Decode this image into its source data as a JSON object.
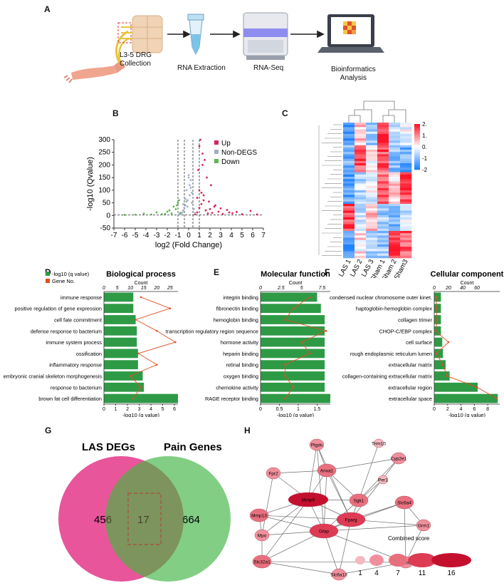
{
  "panel_labels": {
    "a": "A",
    "b": "B",
    "c": "C",
    "d": "D",
    "e": "E",
    "f": "F",
    "g": "G",
    "h": "H"
  },
  "workflow": {
    "step1": {
      "line1": "L3-5 DRG",
      "line2": "Collection"
    },
    "step2": "RNA Extraction",
    "step3": "RNA-Seq",
    "step4": {
      "line1": "Bioinformatics",
      "line2": "Analysis"
    }
  },
  "colors": {
    "up": "#d6245a",
    "nondeg": "#a3afc8",
    "down": "#5fb94a",
    "bar": "#2e9a46",
    "line": "#e0501f",
    "venn_left": "#e8559b",
    "venn_right": "#6cc56e"
  },
  "chart_data": [
    {
      "type": "scatter",
      "title": "Volcano plot",
      "xlabel": "log2 (Fold Change)",
      "ylabel": "-log10 (Qvalue)",
      "xticks": [
        "-7",
        "-6",
        "-5",
        "-4",
        "-3",
        "-2",
        "-1",
        "0",
        "1",
        "2",
        "3",
        "4",
        "5",
        "6",
        "7"
      ],
      "yticks": [
        "-50",
        "0",
        "50",
        "100",
        "150",
        "200",
        "250",
        "300"
      ],
      "xlim": [
        -7,
        7
      ],
      "ylim": [
        -50,
        300
      ],
      "legend": [
        "Up",
        "Non-DEGS",
        "Down"
      ],
      "series": [
        {
          "name": "Up",
          "x": [
            0.6,
            0.8,
            1.0,
            1.2,
            1.4,
            1.6,
            1.8,
            2.0,
            2.2,
            2.5,
            2.8,
            3.2,
            3.6,
            4.1,
            4.5,
            5.0,
            5.8,
            6.4,
            1.1,
            1.3,
            1.5,
            0.9,
            1.7,
            2.1,
            1.0,
            1.2,
            1.4,
            0.8,
            1.9,
            2.4,
            3.0,
            3.8,
            1.0,
            1.3
          ],
          "y": [
            5,
            12,
            30,
            45,
            60,
            20,
            8,
            25,
            10,
            40,
            15,
            6,
            22,
            9,
            14,
            5,
            18,
            4,
            300,
            245,
            220,
            180,
            150,
            120,
            100,
            90,
            80,
            70,
            55,
            35,
            28,
            12,
            275,
            200
          ]
        },
        {
          "name": "Non-DEGS",
          "x": [
            -0.9,
            -0.7,
            -0.5,
            -0.3,
            -0.1,
            0.1,
            0.3,
            0.5,
            -0.6,
            -0.2,
            0.2,
            0.4,
            -0.4,
            0.0,
            -0.8,
            0.6,
            -0.5,
            0.1,
            -0.3,
            0.3,
            0.0,
            -0.1,
            0.2,
            -0.2
          ],
          "y": [
            3,
            8,
            20,
            40,
            60,
            80,
            50,
            25,
            12,
            100,
            140,
            70,
            30,
            150,
            5,
            10,
            45,
            120,
            65,
            90,
            160,
            35,
            110,
            55
          ]
        },
        {
          "name": "Down",
          "x": [
            -0.8,
            -1.2,
            -1.6,
            -2.0,
            -2.5,
            -3.0,
            -3.5,
            -4.2,
            -5.0,
            -6.0,
            -1.0,
            -1.4,
            -1.8,
            -2.2,
            -1.1,
            -0.9
          ],
          "y": [
            10,
            25,
            8,
            15,
            5,
            12,
            4,
            7,
            3,
            2,
            50,
            35,
            20,
            6,
            40,
            60
          ]
        }
      ]
    },
    {
      "type": "heatmap",
      "title": "Clustered heatmap",
      "columns": [
        "LAS 1",
        "LAS 2",
        "LAS 3",
        "Sham 1",
        "Sham 2",
        "Sham3"
      ],
      "colorbar": [
        "2.00",
        "1.00",
        "0.00",
        "-1.00",
        "-2.00"
      ],
      "vmin": -2,
      "vmax": 2
    },
    {
      "type": "bar",
      "title": "Biological process",
      "legend": [
        "-log10 (q value)",
        "Gene No."
      ],
      "categories": [
        "immune response",
        "positive regulation of gene expression",
        "cell fate commitment",
        "defense response to bacterium",
        "immune system process",
        "ossification",
        "inflammatory response",
        "embryonic cranial skeleton morphogenesis",
        "response to bacterium",
        "brown fat cell differentiation"
      ],
      "values": [
        2.5,
        2.5,
        2.7,
        2.8,
        2.8,
        2.9,
        2.9,
        3.3,
        3.4,
        6.3
      ],
      "counts": [
        14,
        25,
        12,
        20,
        27,
        13,
        20,
        10,
        14,
        11
      ],
      "xlabel": "-log10 (q value)",
      "xticks": [
        "0",
        "1",
        "2",
        "3",
        "4",
        "5",
        "6"
      ],
      "xlim": [
        0,
        6.3
      ],
      "top_label": "Count",
      "top_ticks": [
        "0",
        "5",
        "10",
        "15",
        "20",
        "25"
      ],
      "top_lim": [
        0,
        28
      ]
    },
    {
      "type": "bar",
      "title": "Molecular function",
      "categories": [
        "integrin binding",
        "fibronectin binding",
        "hemoglobin binding",
        "transcription regulatory region sequence",
        "hormone activity",
        "heparin binding",
        "retinal binding",
        "oxygen binding",
        "chemokine activity",
        "RAGE receptor binding"
      ],
      "values": [
        1.5,
        1.6,
        1.7,
        1.7,
        1.7,
        1.7,
        1.7,
        1.7,
        1.7,
        1.85
      ],
      "counts": [
        6,
        4,
        3,
        8,
        5,
        6,
        3,
        3,
        4,
        3
      ],
      "xlabel": "-log10 (q value)",
      "xticks": [
        "0",
        "0.5",
        "1",
        "1.5"
      ],
      "xlim": [
        0,
        1.85
      ],
      "top_label": "Count",
      "top_ticks": [
        "0",
        "2.5",
        "5",
        "7.5"
      ],
      "top_lim": [
        0,
        8.5
      ]
    },
    {
      "type": "bar",
      "title": "Cellular component",
      "categories": [
        "condensed nuclear chromosome outer kinet.",
        "haptoglobin-hemoglobin complex",
        "collagen trimer",
        "CHOP-C/EBP complex",
        "cell surface",
        "rough endoplasmic reticulum lumen",
        "extracellular matrix",
        "collagen-containing extracellular matrix",
        "extracellular region",
        "extracellular space"
      ],
      "values": [
        1.0,
        1.0,
        1.0,
        1.0,
        1.2,
        1.3,
        1.7,
        2.3,
        6.5,
        9.5
      ],
      "counts": [
        3,
        3,
        4,
        2,
        20,
        3,
        12,
        18,
        60,
        88
      ],
      "xlabel": "-log10 (q value)",
      "xticks": [
        "0",
        "2",
        "4",
        "6",
        "8"
      ],
      "xlim": [
        0,
        9.8
      ],
      "top_label": "Count",
      "top_ticks": [
        "0",
        "20",
        "40",
        "60"
      ],
      "top_lim": [
        0,
        92
      ]
    }
  ],
  "venn": {
    "left_title": "LAS DEGs",
    "right_title": "Pain Genes",
    "left_only": "456",
    "overlap": "17",
    "right_only": "664"
  },
  "network": {
    "nodes": [
      {
        "label": "Ptgds",
        "score": 4
      },
      {
        "label": "Trim10",
        "score": 1
      },
      {
        "label": "Cyp2e1",
        "score": 4
      },
      {
        "label": "Fpr2",
        "score": 4
      },
      {
        "label": "Anxa1",
        "score": 7
      },
      {
        "label": "Per1",
        "score": 1
      },
      {
        "label": "Mmp9",
        "score": 16
      },
      {
        "label": "Sgk1",
        "score": 7
      },
      {
        "label": "Slc6a4",
        "score": 7
      },
      {
        "label": "Mmp13",
        "score": 7
      },
      {
        "label": "Fparg",
        "score": 11
      },
      {
        "label": "Grm1",
        "score": 4
      },
      {
        "label": "Mpo",
        "score": 4
      },
      {
        "label": "Gfap",
        "score": 11
      },
      {
        "label": "Grm2",
        "score": 4
      },
      {
        "label": "Slc32a1",
        "score": 7
      },
      {
        "label": "Slc6a13",
        "score": 4
      }
    ],
    "legend_title": "Combined score",
    "legend_values": [
      "1",
      "4",
      "7",
      "11",
      "16"
    ]
  }
}
